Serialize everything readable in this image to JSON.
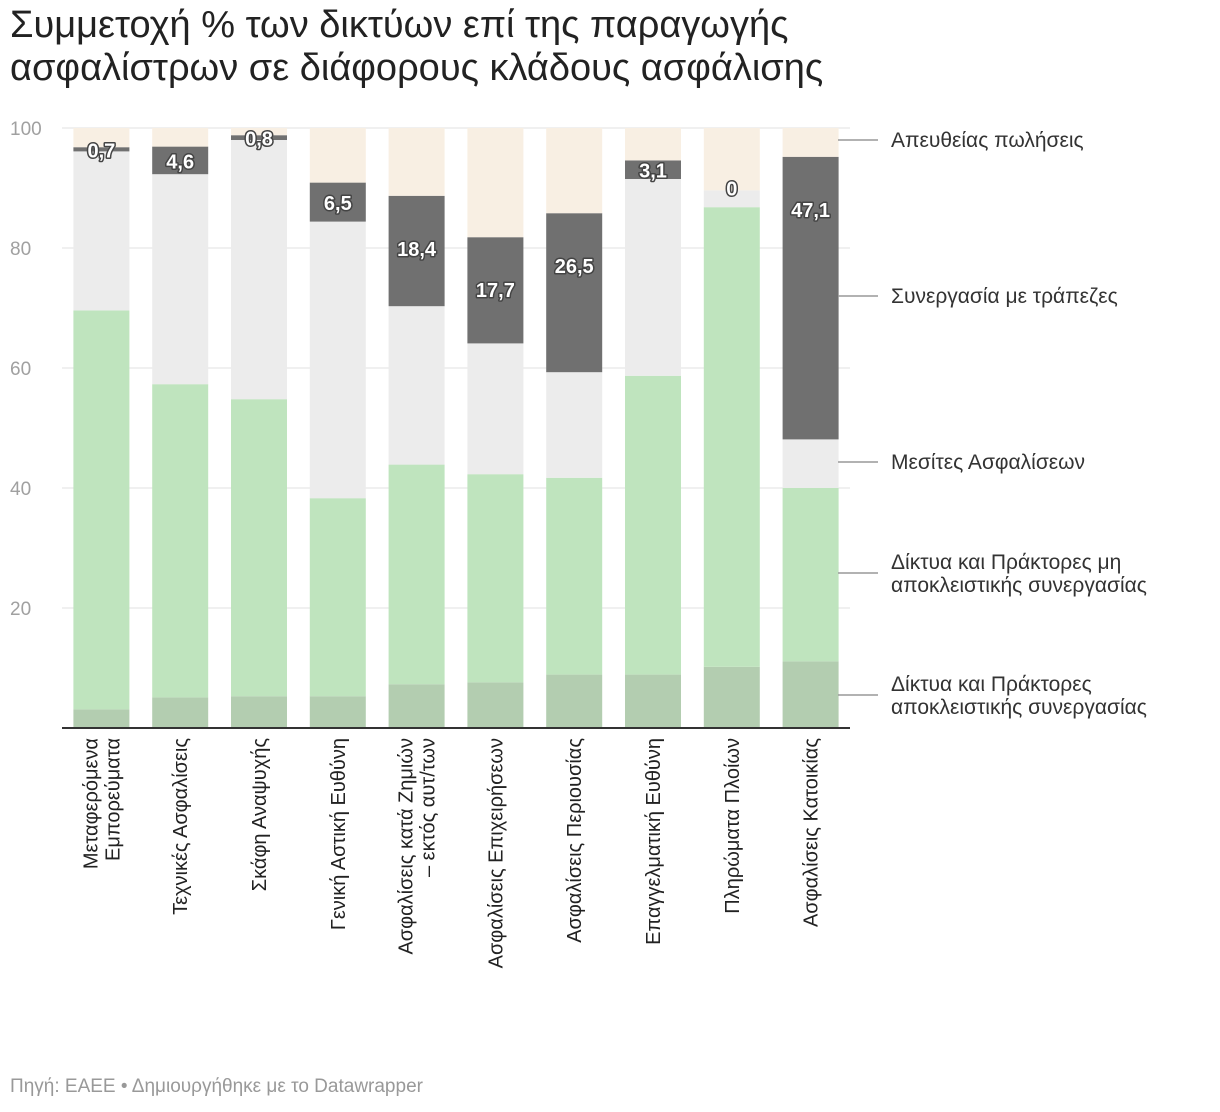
{
  "title": "Συμμετοχή % των δικτύων επί της παραγωγής ασφαλίστρων σε διάφορους κλάδους ασφάλισης",
  "title_line1": "Συμμετοχή % των δικτύων επί της παραγωγής",
  "title_line2": "ασφαλίστρων σε διάφορους κλάδους ασφάλισης",
  "source_text": "Πηγή: ΕΑΕΕ • Δημιουργήθηκε με το Datawrapper",
  "chart_data": {
    "type": "bar",
    "stacked": true,
    "ylim": [
      0,
      100
    ],
    "yticks": [
      20,
      40,
      60,
      80,
      100
    ],
    "grid": true,
    "legend": "right",
    "categories": [
      [
        "Μεταφερόμενα",
        "Εμπορεύματα"
      ],
      [
        "Τεχνικές Ασφαλίσεις"
      ],
      [
        "Σκάφη Αναψυχής"
      ],
      [
        "Γενική Αστική Ευθύνη"
      ],
      [
        "Ασφαλίσεις κατά Ζημιών",
        "– εκτός αυτ/των"
      ],
      [
        "Ασφαλίσεις Επιχειρήσεων"
      ],
      [
        "Ασφαλίσεις Περιουσίας"
      ],
      [
        "Επαγγελματική Ευθύνη"
      ],
      [
        "Πληρώματα Πλοίων"
      ],
      [
        "Ασφαλίσεις Κατοικίας"
      ]
    ],
    "series": [
      {
        "name": "Δίκτυα και Πράκτορες αποκλειστικής συνεργασίας",
        "label_lines": [
          "Δίκτυα και Πράκτορες",
          "αποκλειστικής συνεργασίας"
        ],
        "color": "#b3cdb0",
        "values": [
          3.1,
          5.1,
          5.3,
          5.3,
          7.3,
          7.6,
          8.9,
          8.9,
          10.2,
          11.1
        ]
      },
      {
        "name": "Δίκτυα και Πράκτορες μη αποκλειστικής συνεργασίας",
        "label_lines": [
          "Δίκτυα και Πράκτορες μη",
          "αποκλειστικής συνεργασίας"
        ],
        "color": "#bfe4be",
        "values": [
          66.5,
          52.2,
          49.5,
          33.0,
          36.6,
          34.7,
          32.8,
          49.8,
          76.6,
          28.9
        ]
      },
      {
        "name": "Μεσίτες Ασφαλίσεων",
        "label_lines": [
          "Μεσίτες Ασφαλίσεων"
        ],
        "color": "#ececec",
        "values": [
          26.5,
          35.0,
          43.2,
          46.1,
          26.4,
          21.8,
          17.6,
          32.8,
          2.8,
          8.1
        ]
      },
      {
        "name": "Συνεργασία με τράπεζες",
        "label_lines": [
          "Συνεργασία με τράπεζες"
        ],
        "color": "#707070",
        "values": [
          0.7,
          4.6,
          0.8,
          6.5,
          18.4,
          17.7,
          26.5,
          3.1,
          0.0,
          47.1
        ],
        "value_labels": [
          "0,7",
          "4,6",
          "0,8",
          "6,5",
          "18,4",
          "17,7",
          "26,5",
          "3,1",
          "0",
          "47,1"
        ]
      },
      {
        "name": "Απευθείας πωλήσεις",
        "label_lines": [
          "Απευθείας πωλήσεις"
        ],
        "color": "#f8efe3",
        "values": [
          3.2,
          3.1,
          1.2,
          9.1,
          11.3,
          18.2,
          14.2,
          5.4,
          10.4,
          4.8
        ]
      }
    ]
  }
}
